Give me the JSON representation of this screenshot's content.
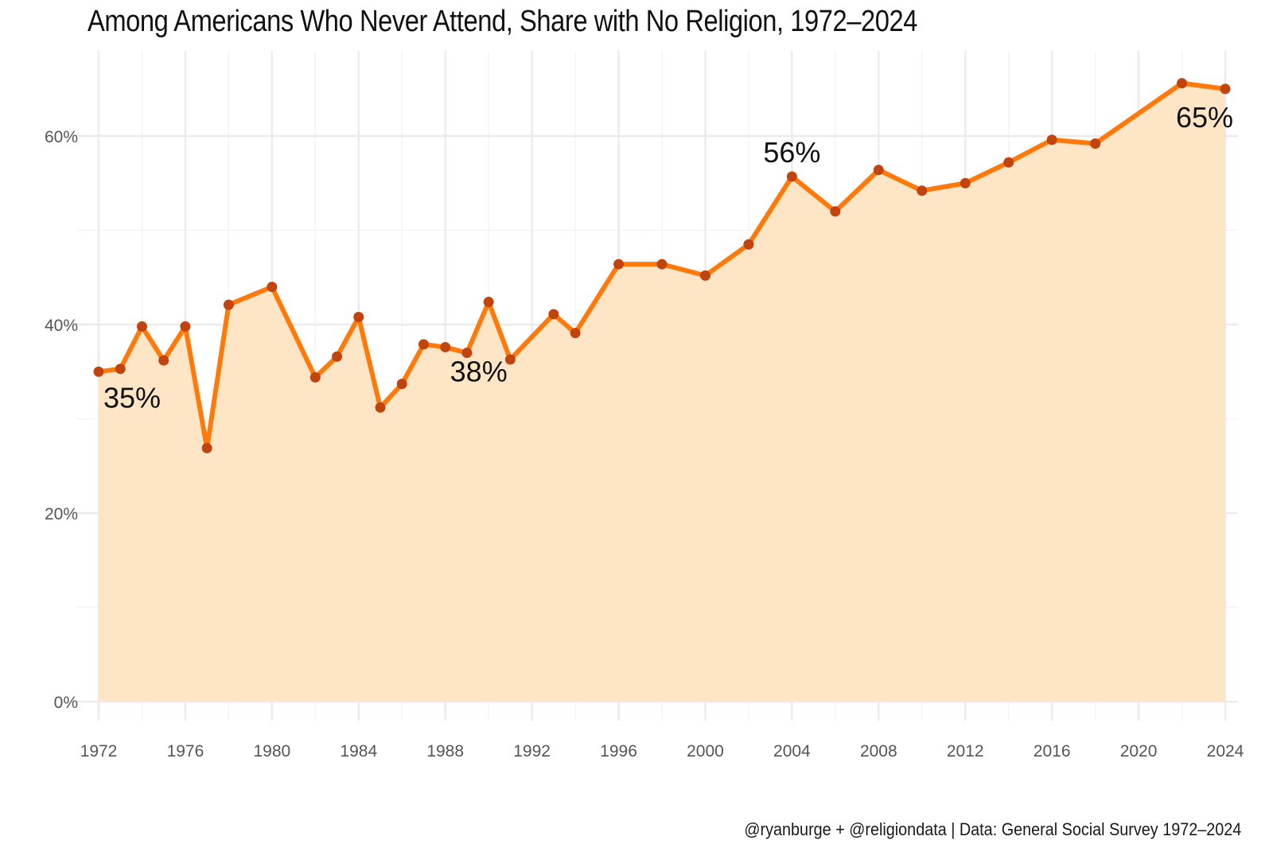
{
  "chart_data": {
    "type": "area",
    "title": "Among Americans Who Never Attend, Share with No Religion, 1972–2024",
    "caption": "@ryanburge + @religiondata | Data: General Social Survey 1972–2024",
    "xlabel": "",
    "ylabel": "",
    "xlim": [
      1972,
      2024
    ],
    "ylim": [
      0,
      0.68
    ],
    "x_ticks": [
      1972,
      1976,
      1980,
      1984,
      1988,
      1992,
      1996,
      2000,
      2004,
      2008,
      2012,
      2016,
      2020,
      2024
    ],
    "x_tick_labels": [
      "1972",
      "1976",
      "1980",
      "1984",
      "1988",
      "1992",
      "1996",
      "2000",
      "2004",
      "2008",
      "2012",
      "2016",
      "2020",
      "2024"
    ],
    "y_ticks": [
      0,
      0.2,
      0.4,
      0.6
    ],
    "y_tick_labels": [
      "0%",
      "20%",
      "40%",
      "60%"
    ],
    "grid": true,
    "series": [
      {
        "name": "Share with no religion",
        "x": [
          1972,
          1973,
          1974,
          1975,
          1976,
          1977,
          1978,
          1980,
          1982,
          1983,
          1984,
          1985,
          1986,
          1987,
          1988,
          1989,
          1990,
          1991,
          1993,
          1994,
          1996,
          1998,
          2000,
          2002,
          2004,
          2006,
          2008,
          2010,
          2012,
          2014,
          2016,
          2018,
          2022,
          2024
        ],
        "values": [
          0.35,
          0.353,
          0.398,
          0.362,
          0.398,
          0.269,
          0.421,
          0.44,
          0.344,
          0.366,
          0.408,
          0.312,
          0.337,
          0.379,
          0.376,
          0.37,
          0.424,
          0.363,
          0.411,
          0.391,
          0.464,
          0.464,
          0.452,
          0.485,
          0.557,
          0.52,
          0.564,
          0.542,
          0.55,
          0.572,
          0.596,
          0.592,
          0.656,
          0.65
        ]
      }
    ],
    "annotations": [
      {
        "label": "35%",
        "x": 1972,
        "y": 0.35
      },
      {
        "label": "38%",
        "x": 1988,
        "y": 0.376
      },
      {
        "label": "56%",
        "x": 2004,
        "y": 0.557
      },
      {
        "label": "65%",
        "x": 2024,
        "y": 0.65
      }
    ],
    "colors": {
      "line": "#ff7a0a",
      "point": "#c1440e",
      "fill": "#fde5c6",
      "grid": "#ebebeb"
    }
  }
}
